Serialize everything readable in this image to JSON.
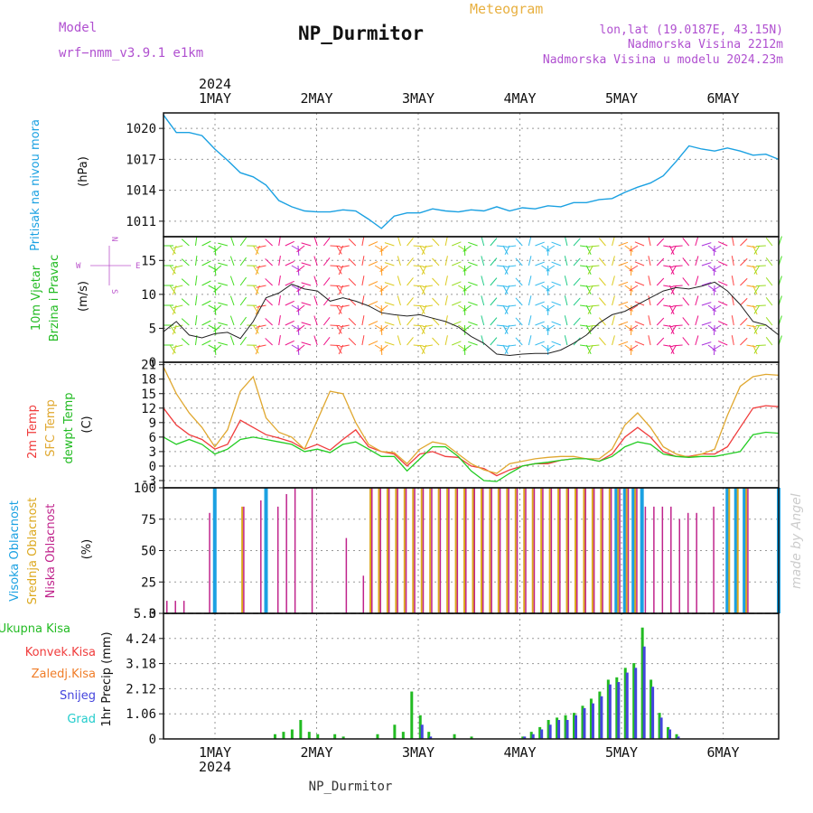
{
  "header": {
    "model_label": "Model",
    "model_value": "wrf−nmm_v3.9.1  e1km",
    "station": "NP_Durmitor",
    "meteogram_label": "Meteogram",
    "coords": "lon,lat (19.0187E, 43.15N)",
    "elevation": "Nadmorska Visina 2212m",
    "elevation_model": "Nadmorska Visina u modelu 2024.23m",
    "footer_station": "NP_Durmitor",
    "watermark": "made by Angel"
  },
  "time_axis": {
    "year": "2024",
    "labels": [
      "1MAY",
      "2MAY",
      "3MAY",
      "4MAY",
      "5MAY",
      "6MAY"
    ],
    "hours_start": 0,
    "hours_end": 144
  },
  "colors": {
    "pressure": "#1ba1e2",
    "temp2m": "#f03c3c",
    "sfc_temp": "#e0a830",
    "dewpoint": "#22cc22",
    "cloud_high": "#1ba1e2",
    "cloud_mid": "#dca81e",
    "cloud_low": "#c0248c",
    "precip_total": "#22bb22",
    "precip_conv": "#f03c3c",
    "precip_frozen": "#f07d28",
    "precip_snow": "#4444dd",
    "precip_graupel": "#22cccc",
    "wind_label": "#22bb22",
    "wind_label2": "#22bb22",
    "wind_compass": "#bb55cc"
  },
  "panels": {
    "pressure": {
      "label": "Pritisak na nivou mora",
      "unit": "(hPa)",
      "ticks": [
        "1011",
        "1014",
        "1017",
        "1020"
      ]
    },
    "wind": {
      "label1": "10m Vjetar",
      "label2": "Brzina i Pravac",
      "unit": "(m/s)",
      "ticks": [
        "0",
        "5",
        "10",
        "15"
      ],
      "compass": {
        "n": "N",
        "s": "S",
        "e": "E",
        "w": "W"
      }
    },
    "temp": {
      "label1": "2m Temp",
      "label2": "SFC Temp",
      "label3": "dewpt Temp",
      "unit": "(C)",
      "ticks": [
        "-3",
        "0",
        "3",
        "6",
        "9",
        "12",
        "15",
        "18",
        "21"
      ]
    },
    "cloud": {
      "label1": "Visoka Oblacnost",
      "label2": "Srednja Oblacnost",
      "label3": "Niska Oblacnost",
      "unit": "(%)",
      "ticks": [
        "0",
        "25",
        "50",
        "75",
        "100"
      ]
    },
    "precip": {
      "legend": [
        "Ukupna Kisa",
        "Konvek.Kisa",
        "Zaledj.Kisa",
        "Snijeg",
        "Grad"
      ],
      "unit": "1hr Precip (mm)",
      "ticks": [
        "0",
        "1.06",
        "2.12",
        "3.18",
        "4.24",
        "5.3"
      ]
    }
  },
  "chart_data": [
    {
      "type": "line",
      "name": "pressure",
      "ylabel": "Pritisak na nivou mora (hPa)",
      "ylim": [
        1009.5,
        1021.5
      ],
      "x": [
        0,
        3,
        6,
        9,
        12,
        15,
        18,
        21,
        24,
        27,
        30,
        33,
        36,
        39,
        42,
        45,
        48,
        51,
        54,
        57,
        60,
        63,
        66,
        69,
        72,
        75,
        78,
        81,
        84,
        87,
        90,
        93,
        96,
        99,
        102,
        105,
        108,
        111,
        114,
        117,
        120,
        123,
        126,
        129,
        132,
        135,
        138,
        141,
        144
      ],
      "series": [
        {
          "values": [
            1021.3,
            1019.6,
            1019.6,
            1019.3,
            1018.0,
            1016.9,
            1015.7,
            1015.3,
            1014.5,
            1013.0,
            1012.4,
            1012.0,
            1011.9,
            1011.9,
            1012.1,
            1012.0,
            1011.2,
            1010.3,
            1011.5,
            1011.8,
            1011.8,
            1012.2,
            1012.0,
            1011.9,
            1012.1,
            1012.0,
            1012.4,
            1012.0,
            1012.3,
            1012.2,
            1012.5,
            1012.4,
            1012.8,
            1012.8,
            1013.1,
            1013.2,
            1013.8,
            1014.3,
            1014.7,
            1015.4,
            1016.8,
            1018.3,
            1018.0,
            1017.8,
            1018.1,
            1017.8,
            1017.4,
            1017.5,
            1017.0
          ]
        }
      ]
    },
    {
      "type": "line",
      "name": "wind",
      "ylabel": "10m Vjetar Brzina i Pravac (m/s)",
      "ylim": [
        0,
        18.5
      ],
      "x": [
        0,
        3,
        6,
        9,
        12,
        15,
        18,
        21,
        24,
        27,
        30,
        33,
        36,
        39,
        42,
        45,
        48,
        51,
        54,
        57,
        60,
        63,
        66,
        69,
        72,
        75,
        78,
        81,
        84,
        87,
        90,
        93,
        96,
        99,
        102,
        105,
        108,
        111,
        114,
        117,
        120,
        123,
        126,
        129,
        132,
        135,
        138,
        141,
        144
      ],
      "series": [
        {
          "name": "speed",
          "values": [
            4.5,
            6.0,
            4.0,
            3.6,
            4.2,
            4.4,
            3.5,
            6.0,
            9.5,
            10.2,
            11.5,
            10.8,
            10.5,
            9.0,
            9.5,
            9.0,
            8.3,
            7.3,
            7.0,
            6.8,
            7.0,
            6.5,
            6.0,
            5.2,
            3.8,
            2.8,
            1.2,
            1.0,
            1.2,
            1.3,
            1.3,
            1.8,
            2.8,
            4.0,
            5.8,
            7.0,
            7.5,
            8.5,
            9.5,
            10.5,
            11.0,
            10.8,
            11.2,
            11.8,
            10.5,
            8.5,
            6.0,
            5.5,
            4.0
          ]
        }
      ]
    },
    {
      "type": "line",
      "name": "temperature",
      "ylabel": "(C)",
      "ylim": [
        -4.5,
        21.5
      ],
      "x": [
        0,
        3,
        6,
        9,
        12,
        15,
        18,
        21,
        24,
        27,
        30,
        33,
        36,
        39,
        42,
        45,
        48,
        51,
        54,
        57,
        60,
        63,
        66,
        69,
        72,
        75,
        78,
        81,
        84,
        87,
        90,
        93,
        96,
        99,
        102,
        105,
        108,
        111,
        114,
        117,
        120,
        123,
        126,
        129,
        132,
        135,
        138,
        141,
        144
      ],
      "series": [
        {
          "name": "2m Temp",
          "values": [
            12.0,
            8.5,
            6.5,
            5.5,
            3.5,
            4.5,
            9.5,
            8.0,
            6.5,
            5.8,
            5.0,
            3.5,
            4.5,
            3.3,
            5.5,
            7.5,
            4.0,
            3.0,
            2.5,
            0.0,
            2.5,
            3.0,
            2.0,
            1.8,
            0.0,
            -0.5,
            -2.0,
            -0.8,
            0.0,
            0.5,
            0.5,
            1.2,
            1.5,
            1.5,
            1.0,
            2.5,
            6.0,
            8.0,
            6.0,
            3.0,
            2.0,
            2.0,
            2.5,
            2.5,
            4.0,
            8.0,
            12.0,
            12.5,
            12.3
          ]
        },
        {
          "name": "SFC Temp",
          "values": [
            20.5,
            15.0,
            11.0,
            8.0,
            4.0,
            7.5,
            15.5,
            18.5,
            10.0,
            7.0,
            6.0,
            3.5,
            9.5,
            15.5,
            15.0,
            9.0,
            4.5,
            3.0,
            2.8,
            0.5,
            3.5,
            5.0,
            4.5,
            2.5,
            0.5,
            -0.8,
            -1.5,
            0.5,
            1.0,
            1.5,
            1.8,
            2.0,
            2.0,
            1.5,
            1.5,
            3.5,
            8.5,
            11.0,
            8.0,
            4.0,
            2.5,
            1.8,
            2.5,
            3.5,
            10.5,
            16.5,
            18.5,
            19.0,
            18.8
          ]
        },
        {
          "name": "dewpt Temp",
          "values": [
            6.0,
            4.5,
            5.5,
            4.5,
            2.5,
            3.5,
            5.5,
            6.0,
            5.5,
            5.0,
            4.5,
            3.0,
            3.5,
            2.8,
            4.5,
            5.0,
            3.5,
            2.0,
            2.0,
            -1.0,
            1.5,
            4.0,
            4.0,
            2.0,
            -1.0,
            -3.0,
            -3.2,
            -1.5,
            0.0,
            0.5,
            0.8,
            1.2,
            1.5,
            1.5,
            1.0,
            2.0,
            4.0,
            5.0,
            4.5,
            2.5,
            2.0,
            1.8,
            2.0,
            2.0,
            2.5,
            3.0,
            6.5,
            7.0,
            6.8
          ]
        }
      ]
    },
    {
      "type": "bar",
      "name": "cloud cover",
      "ylabel": "(%)",
      "ylim": [
        0,
        100
      ],
      "x": [
        0,
        2,
        4,
        6,
        8,
        10,
        12,
        14,
        16,
        18,
        20,
        22,
        24,
        26,
        28,
        30,
        32,
        34,
        36,
        38,
        40,
        42,
        44,
        46,
        48,
        50,
        52,
        54,
        56,
        58,
        60,
        62,
        64,
        66,
        68,
        70,
        72,
        74,
        76,
        78,
        80,
        82,
        84,
        86,
        88,
        90,
        92,
        94,
        96,
        98,
        100,
        102,
        104,
        106,
        108,
        110,
        112,
        114,
        116,
        118,
        120,
        122,
        124,
        126,
        128,
        130,
        132,
        134,
        136,
        138,
        140,
        142,
        144
      ],
      "series": [
        {
          "name": "Visoka Oblacnost",
          "values": [
            0,
            0,
            0,
            0,
            0,
            0,
            100,
            0,
            0,
            0,
            0,
            0,
            100,
            0,
            0,
            0,
            0,
            0,
            0,
            0,
            0,
            0,
            0,
            0,
            0,
            0,
            0,
            0,
            0,
            0,
            0,
            0,
            0,
            0,
            0,
            0,
            0,
            0,
            0,
            0,
            0,
            0,
            0,
            0,
            0,
            0,
            0,
            0,
            0,
            0,
            0,
            0,
            0,
            100,
            100,
            100,
            100,
            0,
            0,
            0,
            0,
            0,
            0,
            0,
            0,
            0,
            100,
            100,
            100,
            0,
            0,
            0,
            100
          ]
        },
        {
          "name": "Srednja Oblacnost",
          "values": [
            0,
            0,
            0,
            0,
            0,
            0,
            0,
            0,
            0,
            85,
            0,
            0,
            0,
            0,
            0,
            0,
            0,
            0,
            0,
            0,
            0,
            0,
            0,
            0,
            100,
            100,
            100,
            100,
            100,
            100,
            100,
            100,
            100,
            100,
            100,
            100,
            100,
            100,
            100,
            100,
            100,
            100,
            100,
            100,
            100,
            100,
            100,
            100,
            100,
            100,
            100,
            100,
            100,
            100,
            100,
            100,
            0,
            0,
            0,
            0,
            0,
            0,
            0,
            0,
            0,
            0,
            100,
            100,
            100,
            0,
            0,
            0,
            0
          ]
        },
        {
          "name": "Niska Oblacnost",
          "values": [
            10,
            10,
            10,
            0,
            0,
            80,
            0,
            0,
            0,
            85,
            0,
            90,
            0,
            85,
            95,
            100,
            0,
            100,
            0,
            0,
            0,
            60,
            0,
            30,
            100,
            100,
            100,
            100,
            100,
            100,
            100,
            100,
            100,
            100,
            100,
            100,
            100,
            100,
            100,
            100,
            100,
            100,
            100,
            100,
            100,
            100,
            100,
            100,
            100,
            100,
            100,
            100,
            100,
            100,
            100,
            100,
            85,
            85,
            85,
            85,
            75,
            80,
            80,
            0,
            85,
            0,
            0,
            0,
            100,
            0,
            0,
            0,
            0
          ]
        }
      ]
    },
    {
      "type": "bar",
      "name": "precipitation",
      "ylabel": "1hr Precip (mm)",
      "ylim": [
        0,
        5.3
      ],
      "x": [
        26,
        28,
        30,
        32,
        34,
        36,
        40,
        42,
        50,
        54,
        56,
        58,
        60,
        62,
        68,
        72,
        84,
        86,
        88,
        90,
        92,
        94,
        96,
        98,
        100,
        102,
        104,
        106,
        108,
        110,
        112,
        114,
        116,
        118,
        120
      ],
      "series": [
        {
          "name": "Ukupna Kisa",
          "values": [
            0.2,
            0.3,
            0.4,
            0.8,
            0.3,
            0.2,
            0.2,
            0.1,
            0.2,
            0.6,
            0.3,
            2.0,
            1.0,
            0.3,
            0.2,
            0.1,
            0.1,
            0.3,
            0.5,
            0.8,
            0.9,
            1.0,
            1.1,
            1.4,
            1.7,
            2.0,
            2.5,
            2.6,
            3.0,
            3.2,
            4.7,
            2.5,
            1.1,
            0.5,
            0.2
          ]
        },
        {
          "name": "Snijeg",
          "values": [
            0,
            0,
            0,
            0,
            0,
            0,
            0,
            0,
            0,
            0,
            0,
            0,
            0.6,
            0.1,
            0,
            0,
            0.1,
            0.2,
            0.4,
            0.6,
            0.8,
            0.8,
            1.0,
            1.3,
            1.5,
            1.8,
            2.3,
            2.4,
            2.8,
            3.0,
            3.9,
            2.2,
            0.9,
            0.4,
            0.1
          ]
        }
      ]
    }
  ]
}
